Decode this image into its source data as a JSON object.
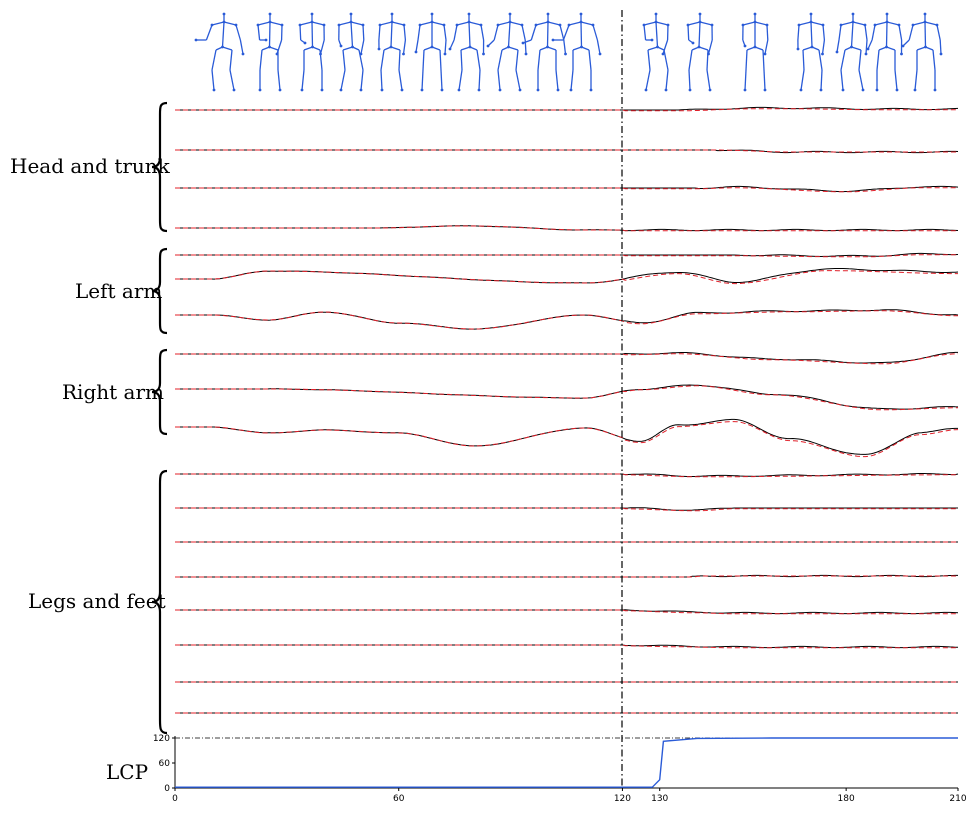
{
  "colors": {
    "ground_truth": "#000000",
    "prediction": "#e0202a",
    "skeleton": "#2a5bd7",
    "lcp_line": "#2a5bd7",
    "divider": "#000000"
  },
  "groups": [
    {
      "label": "Head and trunk",
      "rows": 4
    },
    {
      "label": "Left arm",
      "rows": 3
    },
    {
      "label": "Right arm",
      "rows": 3
    },
    {
      "label": "Legs and feet",
      "rows": 8
    }
  ],
  "chart_data": [
    {
      "type": "line",
      "description_rows": "18 joint-angle traces, ground truth (solid black) vs prediction (dashed red)",
      "x_range": [
        0,
        210
      ],
      "divider_x": 120,
      "series_style": {
        "ground_truth": "solid",
        "prediction": "dashed"
      }
    },
    {
      "type": "line",
      "ylabel": "LCP",
      "x_ticks": [
        0,
        60,
        120,
        130,
        180,
        210
      ],
      "y_ticks": [
        0,
        60,
        120
      ],
      "xlim": [
        0,
        210
      ],
      "ylim": [
        0,
        120
      ],
      "reference_line_y": 120,
      "series": [
        {
          "x": [
            0,
            120,
            128,
            130,
            131,
            140,
            160,
            180,
            200,
            210
          ],
          "y": [
            2,
            2,
            2,
            20,
            112,
            119,
            120,
            120,
            120,
            120
          ]
        }
      ]
    }
  ]
}
